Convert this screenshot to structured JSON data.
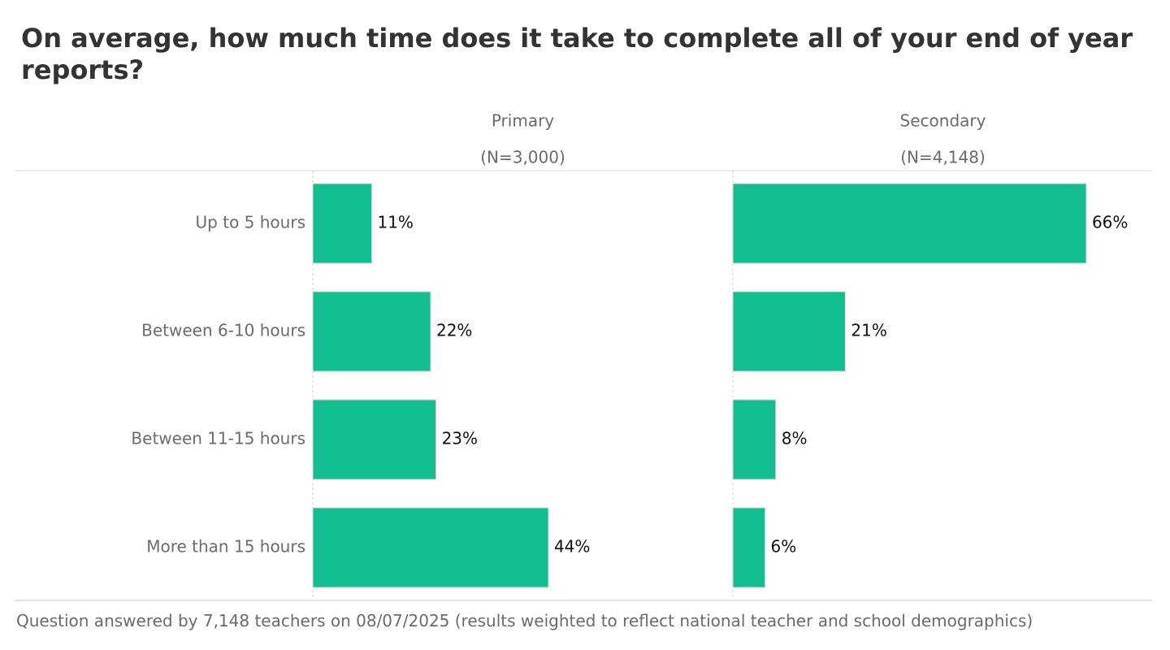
{
  "chart_data": {
    "type": "bar",
    "orientation": "horizontal",
    "title": "On average, how much time does it take to complete all of your end of year reports?",
    "categories": [
      "Up to 5 hours",
      "Between 6-10 hours",
      "Between 11-15 hours",
      "More than 15 hours"
    ],
    "panels": [
      {
        "name": "Primary",
        "n_label": "(N=3,000)",
        "values": [
          11,
          22,
          23,
          44
        ],
        "value_labels": [
          "11%",
          "22%",
          "23%",
          "44%"
        ]
      },
      {
        "name": "Secondary",
        "n_label": "(N=4,148)",
        "values": [
          66,
          21,
          8,
          6
        ],
        "value_labels": [
          "66%",
          "21%",
          "8%",
          "6%"
        ]
      }
    ],
    "value_unit": "%",
    "xlim": [
      0,
      78
    ],
    "grid": false,
    "legend": "none",
    "bar_color": "#12bd8f"
  },
  "footnote": "Question answered by 7,148 teachers on 08/07/2025 (results weighted to reflect national teacher and school demographics)"
}
